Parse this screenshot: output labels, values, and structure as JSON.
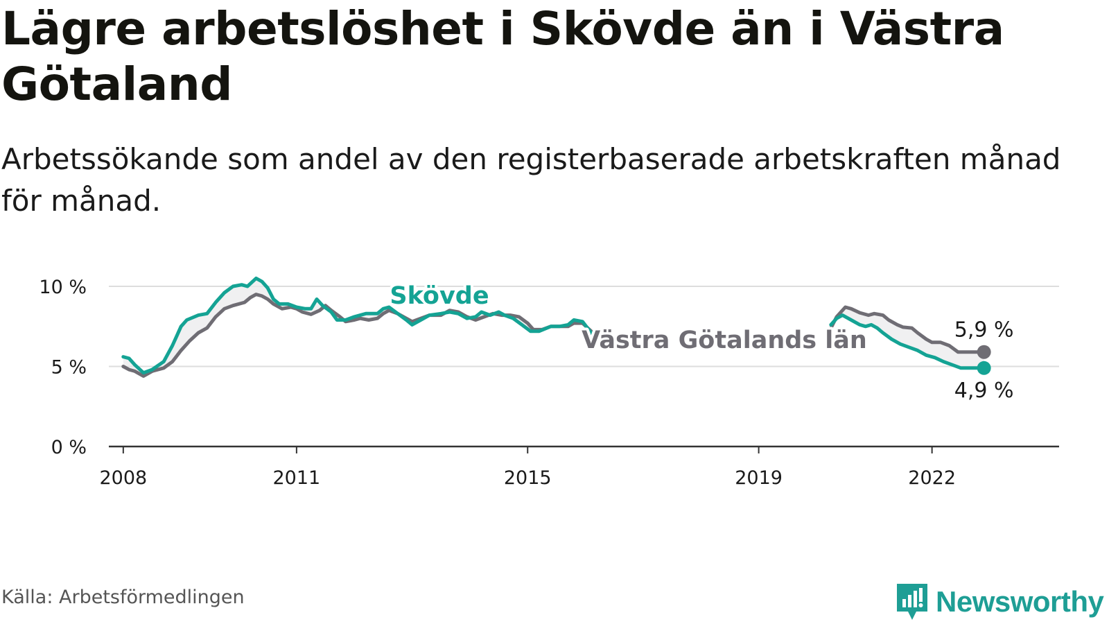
{
  "header": {
    "title": "Lägre arbetslöshet i Skövde än i Västra Götaland",
    "subtitle": "Arbetssökande som andel av den registerbaserade arbetskraften månad för månad."
  },
  "footer": {
    "source": "Källa: Arbetsförmedlingen",
    "brand": "Newsworthy"
  },
  "colors": {
    "skovde": "#14a394",
    "region": "#6f6d74",
    "grid": "#dddddd",
    "axis": "#333333",
    "brand": "#1e9e95"
  },
  "chart_data": {
    "type": "line",
    "title": "Lägre arbetslöshet i Skövde än i Västra Götaland",
    "xlabel": "",
    "ylabel": "",
    "xlim": [
      2007.75,
      2024.2
    ],
    "ylim": [
      0,
      10
    ],
    "y_ticks": [
      {
        "value": 0,
        "label": "0 %"
      },
      {
        "value": 5,
        "label": "5 %"
      },
      {
        "value": 10,
        "label": "10 %"
      }
    ],
    "x_ticks": [
      {
        "value": 2008,
        "label": "2008"
      },
      {
        "value": 2011,
        "label": "2011"
      },
      {
        "value": 2015,
        "label": "2015"
      },
      {
        "value": 2019,
        "label": "2019"
      },
      {
        "value": 2022,
        "label": "2022"
      }
    ],
    "grid": true,
    "series": [
      {
        "name": "Västra Götalands län",
        "label": "Västra Götalands län",
        "color_key": "region",
        "end_label": "5,9 %",
        "segments": [
          [
            [
              2008.0,
              5.0
            ],
            [
              2008.1,
              4.8
            ],
            [
              2008.2,
              4.7
            ],
            [
              2008.35,
              4.4
            ],
            [
              2008.5,
              4.7
            ],
            [
              2008.7,
              4.9
            ],
            [
              2008.85,
              5.3
            ],
            [
              2009.0,
              6.0
            ],
            [
              2009.15,
              6.6
            ],
            [
              2009.3,
              7.1
            ],
            [
              2009.45,
              7.4
            ],
            [
              2009.6,
              8.1
            ],
            [
              2009.75,
              8.6
            ],
            [
              2009.9,
              8.8
            ],
            [
              2010.1,
              9.0
            ],
            [
              2010.2,
              9.3
            ],
            [
              2010.3,
              9.5
            ],
            [
              2010.4,
              9.4
            ],
            [
              2010.5,
              9.2
            ],
            [
              2010.6,
              8.9
            ],
            [
              2010.75,
              8.6
            ],
            [
              2010.9,
              8.7
            ],
            [
              2011.0,
              8.6
            ],
            [
              2011.1,
              8.4
            ],
            [
              2011.25,
              8.25
            ],
            [
              2011.4,
              8.5
            ],
            [
              2011.5,
              8.8
            ],
            [
              2011.6,
              8.5
            ],
            [
              2011.75,
              8.1
            ],
            [
              2011.85,
              7.8
            ],
            [
              2012.0,
              7.9
            ],
            [
              2012.1,
              8.0
            ],
            [
              2012.25,
              7.9
            ],
            [
              2012.4,
              8.0
            ],
            [
              2012.5,
              8.3
            ],
            [
              2012.6,
              8.5
            ],
            [
              2012.75,
              8.3
            ],
            [
              2012.9,
              8.0
            ],
            [
              2013.0,
              7.8
            ],
            [
              2013.15,
              8.0
            ],
            [
              2013.3,
              8.2
            ],
            [
              2013.5,
              8.2
            ],
            [
              2013.65,
              8.5
            ],
            [
              2013.8,
              8.4
            ],
            [
              2013.95,
              8.1
            ],
            [
              2014.1,
              7.9
            ],
            [
              2014.25,
              8.1
            ],
            [
              2014.4,
              8.3
            ],
            [
              2014.55,
              8.2
            ],
            [
              2014.7,
              8.2
            ],
            [
              2014.85,
              8.1
            ],
            [
              2015.0,
              7.7
            ],
            [
              2015.1,
              7.3
            ],
            [
              2015.25,
              7.3
            ],
            [
              2015.4,
              7.5
            ],
            [
              2015.5,
              7.5
            ],
            [
              2015.7,
              7.5
            ],
            [
              2015.8,
              7.7
            ],
            [
              2015.95,
              7.7
            ],
            [
              2016.1,
              7.2
            ],
            [
              2016.25,
              6.6
            ]
          ],
          [
            [
              2020.25,
              7.4
            ],
            [
              2020.35,
              8.1
            ],
            [
              2020.5,
              8.7
            ],
            [
              2020.6,
              8.6
            ],
            [
              2020.75,
              8.35
            ],
            [
              2020.9,
              8.2
            ],
            [
              2021.0,
              8.3
            ],
            [
              2021.15,
              8.2
            ],
            [
              2021.25,
              7.9
            ],
            [
              2021.4,
              7.6
            ],
            [
              2021.5,
              7.45
            ],
            [
              2021.65,
              7.4
            ],
            [
              2021.75,
              7.1
            ],
            [
              2021.9,
              6.7
            ],
            [
              2022.0,
              6.5
            ],
            [
              2022.15,
              6.5
            ],
            [
              2022.3,
              6.3
            ],
            [
              2022.45,
              5.9
            ],
            [
              2022.6,
              5.9
            ],
            [
              2022.8,
              5.9
            ],
            [
              2022.9,
              5.9
            ]
          ]
        ]
      },
      {
        "name": "Skövde",
        "label": "Skövde",
        "color_key": "skovde",
        "end_label": "4,9 %",
        "segments": [
          [
            [
              2008.0,
              5.6
            ],
            [
              2008.1,
              5.5
            ],
            [
              2008.2,
              5.1
            ],
            [
              2008.35,
              4.6
            ],
            [
              2008.5,
              4.8
            ],
            [
              2008.7,
              5.3
            ],
            [
              2008.85,
              6.3
            ],
            [
              2009.0,
              7.5
            ],
            [
              2009.1,
              7.9
            ],
            [
              2009.3,
              8.2
            ],
            [
              2009.45,
              8.3
            ],
            [
              2009.6,
              9.0
            ],
            [
              2009.75,
              9.6
            ],
            [
              2009.9,
              10.0
            ],
            [
              2010.05,
              10.1
            ],
            [
              2010.15,
              10.0
            ],
            [
              2010.3,
              10.5
            ],
            [
              2010.4,
              10.3
            ],
            [
              2010.5,
              9.9
            ],
            [
              2010.6,
              9.2
            ],
            [
              2010.7,
              8.9
            ],
            [
              2010.85,
              8.9
            ],
            [
              2011.0,
              8.7
            ],
            [
              2011.15,
              8.6
            ],
            [
              2011.25,
              8.6
            ],
            [
              2011.35,
              9.2
            ],
            [
              2011.45,
              8.8
            ],
            [
              2011.6,
              8.4
            ],
            [
              2011.7,
              7.9
            ],
            [
              2011.85,
              7.9
            ],
            [
              2012.0,
              8.1
            ],
            [
              2012.2,
              8.3
            ],
            [
              2012.4,
              8.3
            ],
            [
              2012.5,
              8.6
            ],
            [
              2012.6,
              8.7
            ],
            [
              2012.75,
              8.3
            ],
            [
              2012.9,
              7.9
            ],
            [
              2013.0,
              7.6
            ],
            [
              2013.15,
              7.9
            ],
            [
              2013.3,
              8.2
            ],
            [
              2013.5,
              8.3
            ],
            [
              2013.65,
              8.4
            ],
            [
              2013.8,
              8.3
            ],
            [
              2013.95,
              8.0
            ],
            [
              2014.1,
              8.1
            ],
            [
              2014.2,
              8.4
            ],
            [
              2014.35,
              8.2
            ],
            [
              2014.5,
              8.4
            ],
            [
              2014.6,
              8.2
            ],
            [
              2014.75,
              8.0
            ],
            [
              2014.9,
              7.6
            ],
            [
              2015.05,
              7.2
            ],
            [
              2015.2,
              7.2
            ],
            [
              2015.4,
              7.5
            ],
            [
              2015.55,
              7.5
            ],
            [
              2015.7,
              7.6
            ],
            [
              2015.8,
              7.9
            ],
            [
              2015.95,
              7.8
            ],
            [
              2016.1,
              7.1
            ],
            [
              2016.25,
              6.5
            ]
          ],
          [
            [
              2020.25,
              7.6
            ],
            [
              2020.35,
              8.0
            ],
            [
              2020.45,
              8.2
            ],
            [
              2020.6,
              7.9
            ],
            [
              2020.75,
              7.6
            ],
            [
              2020.85,
              7.5
            ],
            [
              2020.95,
              7.6
            ],
            [
              2021.05,
              7.4
            ],
            [
              2021.15,
              7.1
            ],
            [
              2021.3,
              6.7
            ],
            [
              2021.45,
              6.4
            ],
            [
              2021.6,
              6.2
            ],
            [
              2021.75,
              6.0
            ],
            [
              2021.9,
              5.7
            ],
            [
              2022.05,
              5.55
            ],
            [
              2022.2,
              5.3
            ],
            [
              2022.35,
              5.1
            ],
            [
              2022.5,
              4.9
            ],
            [
              2022.65,
              4.9
            ],
            [
              2022.75,
              4.9
            ],
            [
              2022.9,
              4.9
            ]
          ]
        ]
      }
    ],
    "label_boxes": [
      "Skövde",
      "Västra Götalands län"
    ]
  }
}
